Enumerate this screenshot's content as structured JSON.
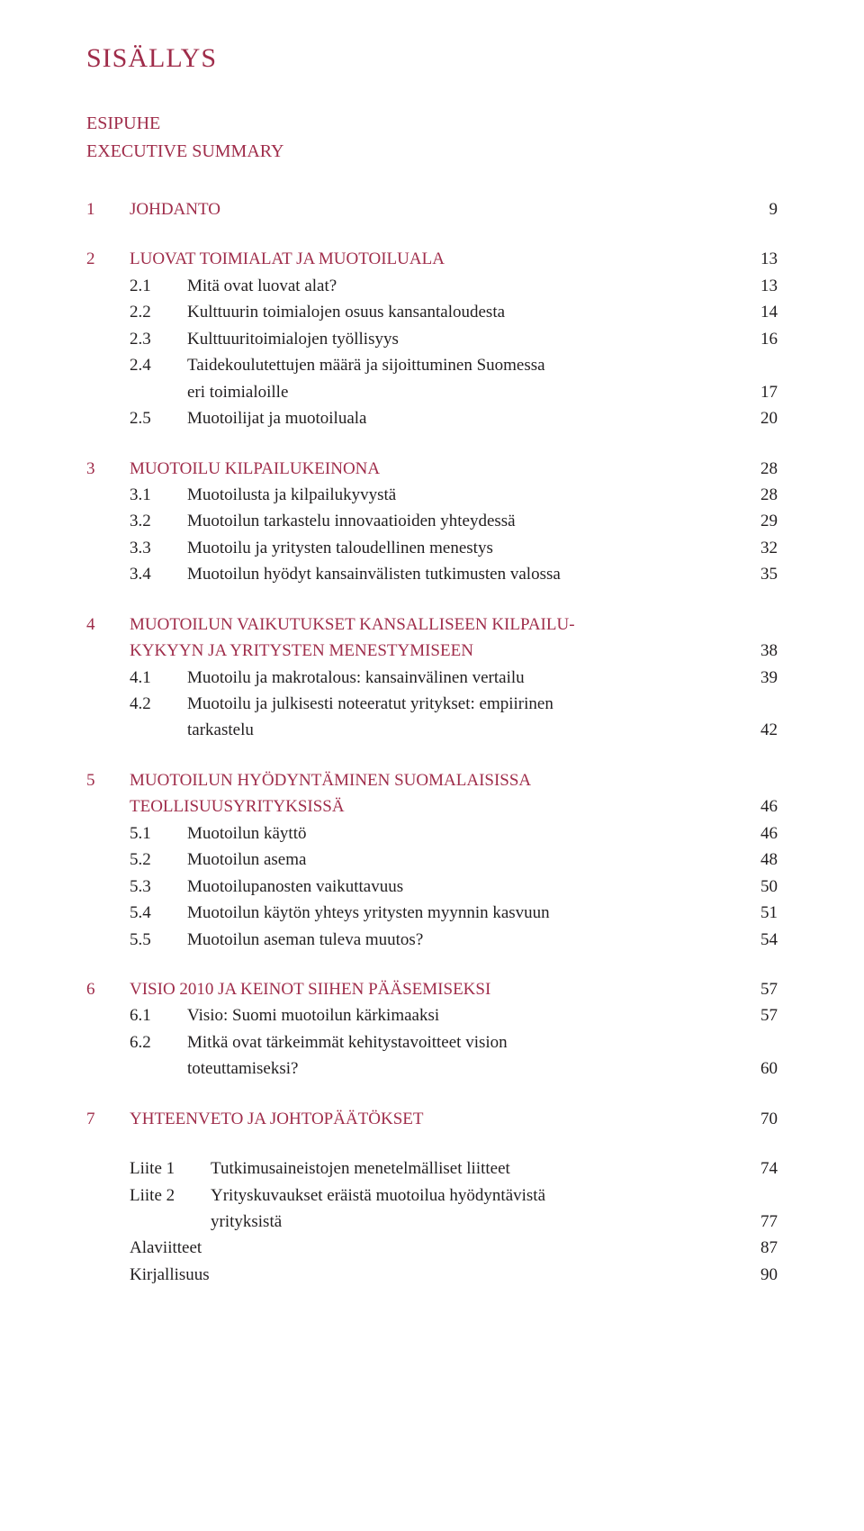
{
  "title": "SISÄLLYS",
  "front": [
    "ESIPUHE",
    "EXECUTIVE SUMMARY"
  ],
  "chapters": [
    {
      "num": "1",
      "label": "JOHDANTO",
      "page": "9",
      "subs": []
    },
    {
      "num": "2",
      "label": "LUOVAT TOIMIALAT JA MUOTOILUALA",
      "page": "13",
      "subs": [
        {
          "num": "2.1",
          "label": "Mitä ovat luovat alat?",
          "page": "13"
        },
        {
          "num": "2.2",
          "label": "Kulttuurin toimialojen osuus kansantaloudesta",
          "page": "14"
        },
        {
          "num": "2.3",
          "label": "Kulttuuritoimialojen työllisyys",
          "page": "16"
        },
        {
          "num": "2.4",
          "label": "Taidekoulutettujen määrä ja sijoittuminen Suomessa",
          "label2": "eri toimialoille",
          "page": "17"
        },
        {
          "num": "2.5",
          "label": "Muotoilijat ja muotoiluala",
          "page": "20"
        }
      ]
    },
    {
      "num": "3",
      "label": "MUOTOILU KILPAILUKEINONA",
      "page": "28",
      "subs": [
        {
          "num": "3.1",
          "label": "Muotoilusta ja kilpailukyvystä",
          "page": "28"
        },
        {
          "num": "3.2",
          "label": "Muotoilun tarkastelu innovaatioiden yhteydessä",
          "page": "29"
        },
        {
          "num": "3.3",
          "label": "Muotoilu ja yritysten taloudellinen menestys",
          "page": "32"
        },
        {
          "num": "3.4",
          "label": "Muotoilun hyödyt kansainvälisten tutkimusten valossa",
          "page": "35"
        }
      ]
    },
    {
      "num": "4",
      "label": "MUOTOILUN VAIKUTUKSET KANSALLISEEN KILPAILU-",
      "label2": "KYKYYN JA YRITYSTEN MENESTYMISEEN",
      "page": "38",
      "subs": [
        {
          "num": "4.1",
          "label": "Muotoilu ja makrotalous: kansainvälinen vertailu",
          "page": "39"
        },
        {
          "num": "4.2",
          "label": "Muotoilu ja julkisesti noteeratut yritykset: empiirinen",
          "label2": "tarkastelu",
          "page": "42"
        }
      ]
    },
    {
      "num": "5",
      "label": "MUOTOILUN HYÖDYNTÄMINEN SUOMALAISISSA",
      "label2": "TEOLLISUUSYRITYKSISSÄ",
      "page": "46",
      "subs": [
        {
          "num": "5.1",
          "label": "Muotoilun käyttö",
          "page": "46"
        },
        {
          "num": "5.2",
          "label": "Muotoilun asema",
          "page": "48"
        },
        {
          "num": "5.3",
          "label": "Muotoilupanosten vaikuttavuus",
          "page": "50"
        },
        {
          "num": "5.4",
          "label": "Muotoilun käytön yhteys yritysten myynnin kasvuun",
          "page": "51"
        },
        {
          "num": "5.5",
          "label": "Muotoilun aseman tuleva muutos?",
          "page": "54"
        }
      ]
    },
    {
      "num": "6",
      "label": "VISIO 2010 JA KEINOT SIIHEN PÄÄSEMISEKSI",
      "page": "57",
      "subs": [
        {
          "num": "6.1",
          "label": "Visio: Suomi muotoilun kärkimaaksi",
          "page": "57"
        },
        {
          "num": "6.2",
          "label": "Mitkä ovat tärkeimmät kehitystavoitteet vision",
          "label2": "toteuttamiseksi?",
          "page": "60"
        }
      ]
    },
    {
      "num": "7",
      "label": "YHTEENVETO JA JOHTOPÄÄTÖKSET",
      "page": "70",
      "subs": []
    }
  ],
  "attachments": [
    {
      "num": "Liite 1",
      "label": "Tutkimusaineistojen menetelmälliset liitteet",
      "page": "74"
    },
    {
      "num": "Liite 2",
      "label": "Yrityskuvaukset eräistä muotoilua hyödyntävistä",
      "label2": "yrityksistä",
      "page": "77"
    }
  ],
  "tail": [
    {
      "label": "Alaviitteet",
      "page": "87"
    },
    {
      "label": "Kirjallisuus",
      "page": "90"
    }
  ],
  "colors": {
    "accent": "#9f2c4a",
    "text": "#221f20",
    "background": "#ffffff"
  }
}
